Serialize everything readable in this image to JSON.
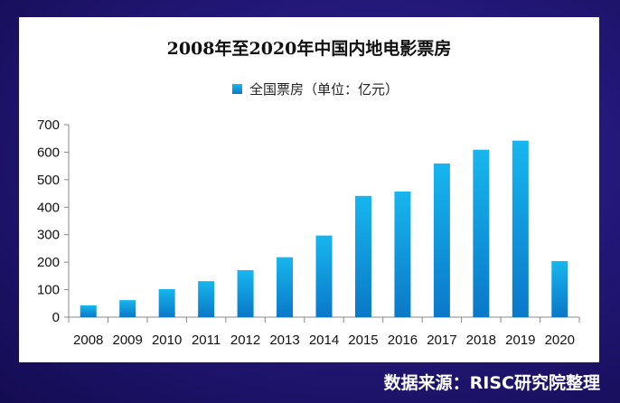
{
  "chart_data": {
    "type": "bar",
    "title": "2008年至2020年中国内地电影票房",
    "legend": "全国票房（单位：亿元）",
    "categories": [
      "2008",
      "2009",
      "2010",
      "2011",
      "2012",
      "2013",
      "2014",
      "2015",
      "2016",
      "2017",
      "2018",
      "2019",
      "2020"
    ],
    "series": [
      {
        "name": "全国票房（单位：亿元）",
        "values": [
          43,
          62,
          102,
          131,
          171,
          218,
          297,
          441,
          457,
          559,
          609,
          642,
          204
        ]
      }
    ],
    "yticks": [
      0,
      100,
      200,
      300,
      400,
      500,
      600,
      700
    ],
    "ylim": [
      0,
      700
    ],
    "grid": false,
    "legend_position": "top",
    "bar_color_top": "#17b6ee",
    "bar_color_bottom": "#0a78c8"
  },
  "source_text": "数据来源：RISC研究院整理"
}
